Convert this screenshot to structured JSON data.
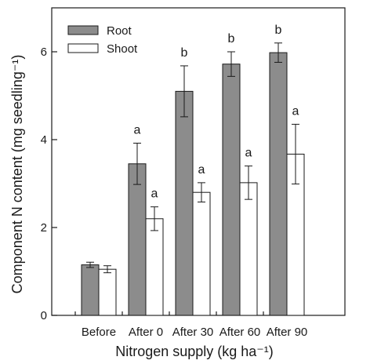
{
  "chart_data": {
    "type": "bar",
    "xlabel": "Nitrogen supply (kg ha⁻¹)",
    "ylabel": "Component N content (mg seedling⁻¹)",
    "categories": [
      "Before",
      "After 0",
      "After 30",
      "After 60",
      "After 90"
    ],
    "ylim": [
      0,
      7
    ],
    "yticks": [
      0,
      2,
      4,
      6
    ],
    "legend_position": "top-left",
    "grid": false,
    "series": [
      {
        "name": "Root",
        "color": "#8c8c8c",
        "values": [
          1.15,
          3.45,
          5.1,
          5.72,
          5.98
        ],
        "errors": [
          0.06,
          0.47,
          0.58,
          0.28,
          0.22
        ],
        "labels": [
          "",
          "a",
          "b",
          "b",
          "b"
        ]
      },
      {
        "name": "Shoot",
        "color": "#ffffff",
        "values": [
          1.05,
          2.2,
          2.8,
          3.02,
          3.67
        ],
        "errors": [
          0.08,
          0.27,
          0.22,
          0.38,
          0.68
        ],
        "labels": [
          "",
          "a",
          "a",
          "a",
          "a"
        ]
      }
    ]
  }
}
